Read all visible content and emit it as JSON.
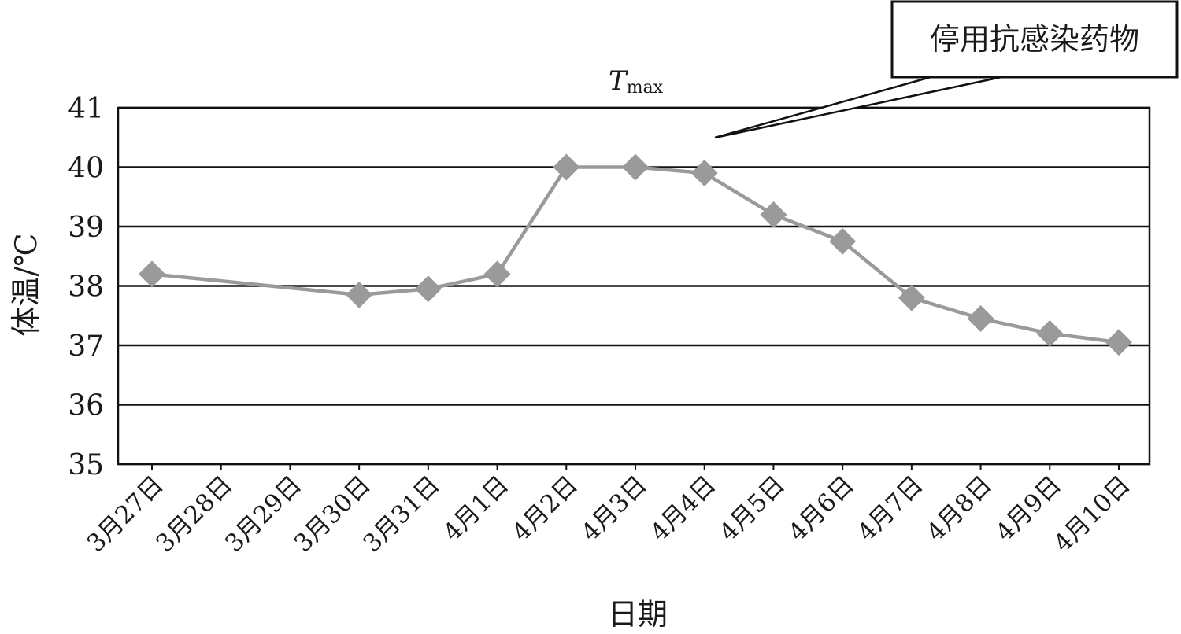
{
  "chart_data": {
    "type": "line",
    "title": "",
    "xlabel": "日期",
    "ylabel": "体温/℃",
    "ylim": [
      35,
      41
    ],
    "yticks": [
      "35",
      "36",
      "37",
      "38",
      "39",
      "40",
      "41"
    ],
    "grid": true,
    "categories": [
      "3月27日",
      "3月28日",
      "3月29日",
      "3月30日",
      "3月31日",
      "4月1日",
      "4月2日",
      "4月3日",
      "4月4日",
      "4月5日",
      "4月6日",
      "4月7日",
      "4月8日",
      "4月9日",
      "4月10日"
    ],
    "series": [
      {
        "marker": "diamond",
        "color": "#9a9a9a",
        "values": [
          38.2,
          null,
          null,
          37.85,
          37.95,
          38.2,
          40.0,
          40.0,
          39.9,
          39.2,
          38.75,
          37.8,
          37.45,
          37.2,
          37.05
        ]
      }
    ],
    "annotations": {
      "tmax_letter": "T",
      "tmax_subscript": "max",
      "callout_text": "停用抗感染药物"
    }
  }
}
